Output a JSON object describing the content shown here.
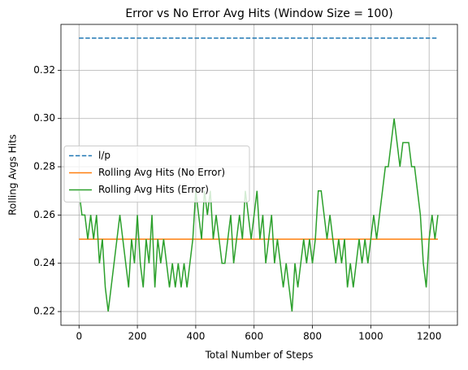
{
  "chart_data": {
    "type": "line",
    "title": "Error vs No Error Avg Hits (Window Size = 100)",
    "x_label": "Total Number of Steps",
    "y_label": "Rolling Avgs Hits",
    "xlim": [
      -62,
      1297
    ],
    "ylim": [
      0.2143,
      0.339
    ],
    "xticks": [
      0,
      200,
      400,
      600,
      800,
      1000,
      1200
    ],
    "yticks": [
      0.22,
      0.24,
      0.26,
      0.28,
      {
        "value": 0.3,
        "label": "0.30"
      },
      0.32
    ],
    "grid": true,
    "legend": "center left",
    "series": [
      {
        "name": "l/p",
        "color": "#1f77b4",
        "dash": true,
        "x": [
          0,
          1230
        ],
        "values": [
          0.3333,
          0.3333
        ]
      },
      {
        "name": "Rolling Avg Hits (No Error)",
        "color": "#ff7f0e",
        "x": [
          0,
          1230
        ],
        "values": [
          0.25,
          0.25
        ]
      },
      {
        "name": "Rolling Avg Hits (Error)",
        "color": "#2ca02c",
        "x": [
          0,
          10,
          20,
          30,
          40,
          50,
          60,
          70,
          80,
          90,
          100,
          110,
          120,
          130,
          140,
          150,
          160,
          170,
          180,
          190,
          200,
          210,
          220,
          230,
          240,
          250,
          260,
          270,
          280,
          290,
          300,
          310,
          320,
          330,
          340,
          350,
          360,
          370,
          380,
          390,
          400,
          410,
          420,
          430,
          440,
          450,
          460,
          470,
          480,
          490,
          500,
          510,
          520,
          530,
          540,
          550,
          560,
          570,
          580,
          590,
          600,
          610,
          620,
          630,
          640,
          650,
          660,
          670,
          680,
          690,
          700,
          710,
          720,
          730,
          740,
          750,
          760,
          770,
          780,
          790,
          800,
          810,
          820,
          830,
          840,
          850,
          860,
          870,
          880,
          890,
          900,
          910,
          920,
          930,
          940,
          950,
          960,
          970,
          980,
          990,
          1000,
          1010,
          1020,
          1030,
          1040,
          1050,
          1060,
          1070,
          1080,
          1090,
          1100,
          1110,
          1120,
          1130,
          1140,
          1150,
          1160,
          1170,
          1180,
          1190,
          1200,
          1210,
          1220,
          1230
        ],
        "values": [
          0.27,
          0.26,
          0.26,
          0.25,
          0.26,
          0.25,
          0.26,
          0.24,
          0.25,
          0.23,
          0.22,
          0.23,
          0.24,
          0.25,
          0.26,
          0.25,
          0.24,
          0.23,
          0.25,
          0.24,
          0.26,
          0.24,
          0.23,
          0.25,
          0.24,
          0.26,
          0.23,
          0.25,
          0.24,
          0.25,
          0.24,
          0.23,
          0.24,
          0.23,
          0.24,
          0.23,
          0.24,
          0.23,
          0.24,
          0.25,
          0.27,
          0.26,
          0.25,
          0.27,
          0.26,
          0.27,
          0.25,
          0.26,
          0.25,
          0.24,
          0.24,
          0.25,
          0.26,
          0.24,
          0.25,
          0.26,
          0.25,
          0.27,
          0.26,
          0.25,
          0.26,
          0.27,
          0.25,
          0.26,
          0.24,
          0.25,
          0.26,
          0.24,
          0.25,
          0.24,
          0.23,
          0.24,
          0.23,
          0.22,
          0.24,
          0.23,
          0.24,
          0.25,
          0.24,
          0.25,
          0.24,
          0.25,
          0.27,
          0.27,
          0.26,
          0.25,
          0.26,
          0.25,
          0.24,
          0.25,
          0.24,
          0.25,
          0.23,
          0.24,
          0.23,
          0.24,
          0.25,
          0.24,
          0.25,
          0.24,
          0.25,
          0.26,
          0.25,
          0.26,
          0.27,
          0.28,
          0.28,
          0.29,
          0.3,
          0.29,
          0.28,
          0.29,
          0.29,
          0.29,
          0.28,
          0.28,
          0.27,
          0.26,
          0.24,
          0.23,
          0.25,
          0.26,
          0.25,
          0.26
        ]
      }
    ]
  }
}
